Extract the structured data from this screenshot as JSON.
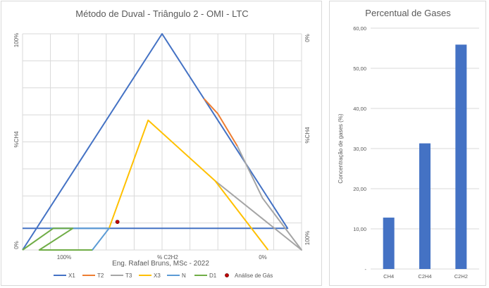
{
  "chart_data": [
    {
      "type": "ternary-line",
      "title": "Método de Duval - Triângulo 2 - OMI - LTC",
      "watermark": "Eng. Rafael Bruns, MSc - 2022",
      "axis_labels": {
        "left_top": "100%",
        "left_bottom": "0%",
        "left_name": "%CH4",
        "right_top": "0%",
        "right_name": "%CH4",
        "right_bottom": "100%",
        "bottom_left": "100%",
        "bottom_mid": "% C2H2",
        "bottom_right": "0%"
      },
      "xlim": [
        0,
        100
      ],
      "ylim": [
        0,
        100
      ],
      "series": [
        {
          "name": "X1",
          "color": "#4472c4",
          "points": [
            [
              0,
              0
            ],
            [
              50,
              100
            ],
            [
              65,
              70
            ],
            [
              95,
              10
            ],
            [
              0,
              10
            ]
          ]
        },
        {
          "name": "T2",
          "color": "#ed7d31",
          "points": [
            [
              65,
              70
            ],
            [
              70,
              63
            ],
            [
              77,
              48
            ]
          ]
        },
        {
          "name": "T3",
          "color": "#a5a5a5",
          "points": [
            [
              77,
              48
            ],
            [
              86,
              24
            ],
            [
              100,
              0
            ],
            [
              69,
              32
            ]
          ]
        },
        {
          "name": "X3",
          "color": "#ffc000",
          "points": [
            [
              31,
              10
            ],
            [
              45,
              60
            ],
            [
              69,
              32
            ],
            [
              88,
              0
            ]
          ]
        },
        {
          "name": "N",
          "color": "#5b9bd5",
          "points": [
            [
              10,
              10
            ],
            [
              31,
              10
            ],
            [
              25,
              0
            ],
            [
              22,
              0
            ]
          ]
        },
        {
          "name": "D1",
          "color": "#70ad47",
          "points": [
            [
              0,
              0
            ],
            [
              11,
              10
            ],
            [
              18,
              10
            ],
            [
              6,
              0
            ],
            [
              25,
              0
            ]
          ]
        },
        {
          "name": "Análise de Gás",
          "color": "#c00000",
          "marker": "dot",
          "points": [
            [
              34,
              13
            ]
          ]
        }
      ]
    },
    {
      "type": "bar",
      "title": "Percentual de Gases",
      "ylabel": "Concentração de gases (%)",
      "categories": [
        "CH4",
        "C2H4",
        "C2H2"
      ],
      "values": [
        12.8,
        31.3,
        55.9
      ],
      "ylim": [
        0,
        60
      ],
      "ytick_labels": [
        "-",
        "10,00",
        "20,00",
        "30,00",
        "40,00",
        "50,00",
        "60,00"
      ],
      "color": "#4472c4"
    }
  ]
}
